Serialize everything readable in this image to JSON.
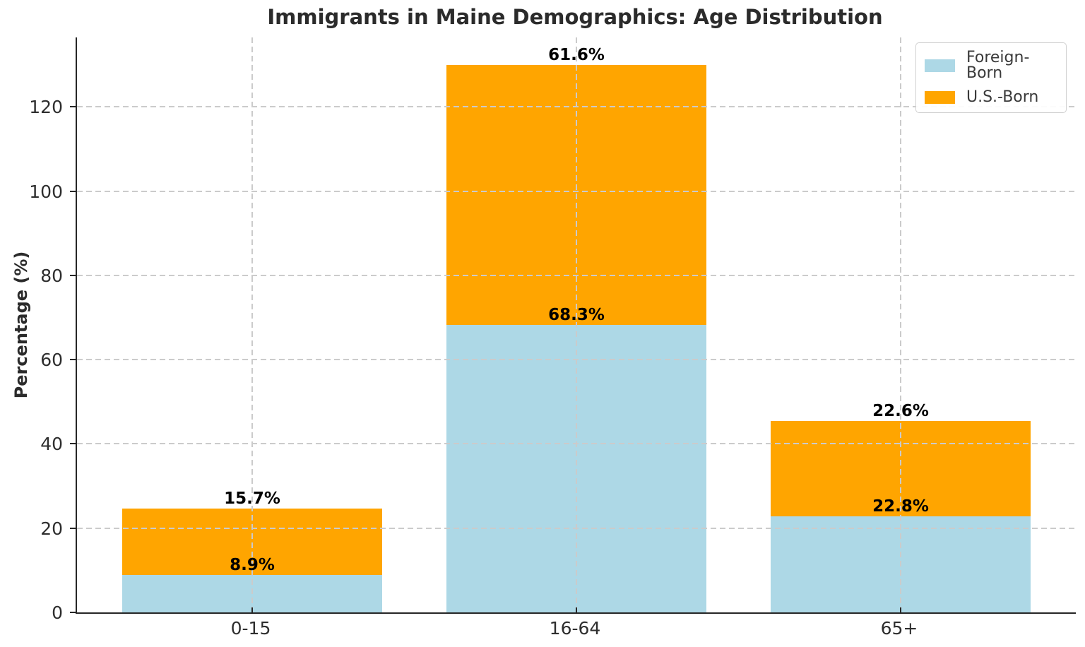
{
  "title": "Immigrants in Maine Demographics: Age Distribution",
  "chart_data": {
    "type": "bar",
    "stacked": true,
    "title": "Immigrants in Maine Demographics: Age Distribution",
    "xlabel": "",
    "ylabel": "Percentage (%)",
    "categories": [
      "0-15",
      "16-64",
      "65+"
    ],
    "series": [
      {
        "name": "Foreign-Born",
        "color": "#ADD8E6",
        "values": [
          8.9,
          68.3,
          22.8
        ],
        "data_labels": [
          "8.9%",
          "68.3%",
          "22.8%"
        ]
      },
      {
        "name": "U.S.-Born",
        "color": "#FFA500",
        "values": [
          15.7,
          61.6,
          22.6
        ],
        "data_labels": [
          "15.7%",
          "61.6%",
          "22.6%"
        ]
      }
    ],
    "y_ticks": [
      0,
      20,
      40,
      60,
      80,
      100,
      120
    ],
    "ylim": [
      0,
      136.5
    ],
    "grid": "dashed light-gray gridlines on both axes, drawn above bars",
    "legend_position": "upper right",
    "spine_color": "#262626",
    "grid_color": "#cbcbcb"
  },
  "legend": {
    "items": [
      {
        "label": "Foreign-Born",
        "color": "#ADD8E6"
      },
      {
        "label": "U.S.-Born",
        "color": "#FFA500"
      }
    ]
  }
}
